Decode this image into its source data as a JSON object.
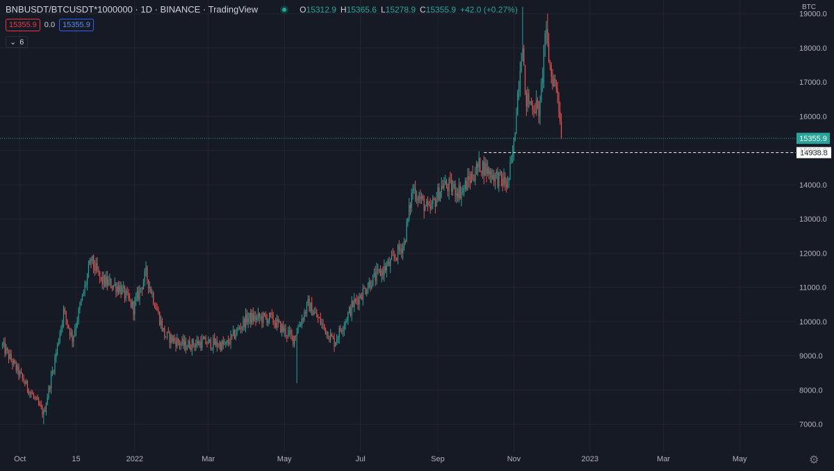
{
  "legend": {
    "symbol": "BNBUSDT/BTCUSDT*1000000 · 1D · BINANCE · TradingView",
    "open_key": "O",
    "open": "15312.9",
    "high_key": "H",
    "high": "15365.6",
    "low_key": "L",
    "low": "15278.9",
    "close_key": "C",
    "close": "15355.9",
    "change": "+42.0 (+0.27%)"
  },
  "indicator": {
    "value1": "15355.9",
    "value2": "0.0",
    "value3": "15355.9",
    "collapse_label": "6"
  },
  "colors": {
    "up": "#26a69a",
    "down": "#ef5350",
    "background": "#161a25",
    "grid": "#232632"
  },
  "chart_data": {
    "type": "candlestick",
    "axis_unit": "BTC",
    "y_range": [
      6200,
      19400
    ],
    "y_ticks": [
      "19000.0",
      "18000.0",
      "17000.0",
      "16000.0",
      "15000.0",
      "14000.0",
      "13000.0",
      "12000.0",
      "11000.0",
      "10000.0",
      "9000.0",
      "8000.0",
      "7000.0"
    ],
    "x_range": [
      "2021-09-15",
      "2023-06-15"
    ],
    "x_ticks": [
      {
        "label": "Oct",
        "date": "2021-10-01"
      },
      {
        "label": "15",
        "date": "2021-11-15"
      },
      {
        "label": "2022",
        "date": "2022-01-01"
      },
      {
        "label": "Mar",
        "date": "2022-03-01"
      },
      {
        "label": "May",
        "date": "2022-05-01"
      },
      {
        "label": "Jul",
        "date": "2022-07-01"
      },
      {
        "label": "Sep",
        "date": "2022-09-01"
      },
      {
        "label": "Nov",
        "date": "2022-11-01"
      },
      {
        "label": "2023",
        "date": "2023-01-01"
      },
      {
        "label": "Mar",
        "date": "2023-03-01"
      },
      {
        "label": "May",
        "date": "2023-05-01"
      }
    ],
    "first_candle_date": "2021-09-17",
    "key_closes": [
      [
        "2021-09-17",
        9300
      ],
      [
        "2021-10-05",
        8200
      ],
      [
        "2021-10-20",
        7300
      ],
      [
        "2021-10-28",
        8700
      ],
      [
        "2021-11-05",
        10300
      ],
      [
        "2021-11-12",
        9500
      ],
      [
        "2021-11-22",
        11000
      ],
      [
        "2021-11-27",
        11800
      ],
      [
        "2021-12-05",
        11200
      ],
      [
        "2021-12-20",
        11000
      ],
      [
        "2021-12-31",
        10400
      ],
      [
        "2022-01-10",
        11400
      ],
      [
        "2022-01-25",
        9600
      ],
      [
        "2022-02-10",
        9300
      ],
      [
        "2022-02-25",
        9400
      ],
      [
        "2022-03-15",
        9300
      ],
      [
        "2022-04-01",
        10100
      ],
      [
        "2022-04-20",
        10100
      ],
      [
        "2022-05-08",
        9500
      ],
      [
        "2022-05-20",
        10500
      ],
      [
        "2022-06-10",
        9400
      ],
      [
        "2022-06-25",
        10500
      ],
      [
        "2022-07-10",
        11200
      ],
      [
        "2022-07-25",
        11700
      ],
      [
        "2022-08-05",
        12300
      ],
      [
        "2022-08-12",
        13900
      ],
      [
        "2022-08-25",
        13200
      ],
      [
        "2022-09-05",
        14000
      ],
      [
        "2022-09-20",
        13800
      ],
      [
        "2022-10-05",
        14600
      ],
      [
        "2022-10-15",
        14300
      ],
      [
        "2022-10-27",
        14000
      ],
      [
        "2022-11-01",
        15100
      ],
      [
        "2022-11-03",
        16300
      ],
      [
        "2022-11-08",
        18300
      ],
      [
        "2022-11-10",
        16500
      ],
      [
        "2022-11-22",
        16200
      ],
      [
        "2022-11-26",
        18500
      ],
      [
        "2022-12-01",
        17200
      ],
      [
        "2022-12-06",
        16800
      ],
      [
        "2022-12-09",
        15400
      ]
    ],
    "spikes": [
      {
        "date": "2022-05-11",
        "low": 8200
      },
      {
        "date": "2022-11-08",
        "high": 19200
      },
      {
        "date": "2022-11-28",
        "high": 19000
      },
      {
        "date": "2021-10-20",
        "low": 7000
      }
    ],
    "last_price": 15355.9,
    "last_price_label": "15355.9",
    "hline_price": 14938.8,
    "hline_label": "14938.8",
    "hline_start_date": "2022-10-08"
  }
}
